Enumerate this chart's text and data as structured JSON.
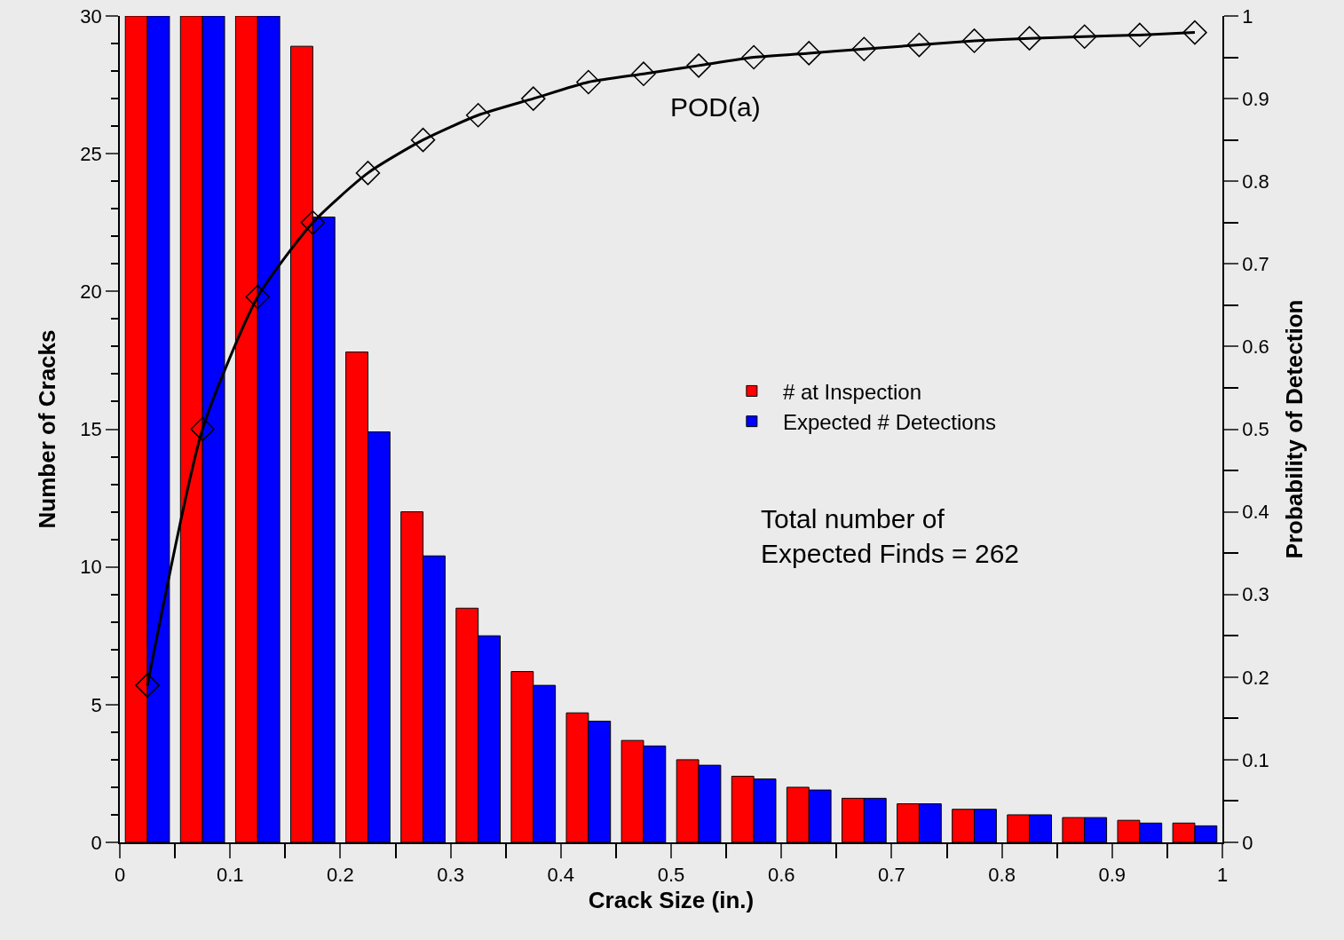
{
  "chart_data": {
    "type": "bar",
    "xlabel": "Crack Size (in.)",
    "ylabel": "Number of Cracks",
    "y2label": "Probability of Detection",
    "x": [
      0.025,
      0.075,
      0.125,
      0.175,
      0.225,
      0.275,
      0.325,
      0.375,
      0.425,
      0.475,
      0.525,
      0.575,
      0.625,
      0.675,
      0.725,
      0.775,
      0.825,
      0.875,
      0.925,
      0.975
    ],
    "xlim": [
      0,
      1
    ],
    "xticks": [
      0,
      0.1,
      0.2,
      0.3,
      0.4,
      0.5,
      0.6,
      0.7,
      0.8,
      0.9,
      1
    ],
    "ylim": [
      0,
      30
    ],
    "yticks": [
      0,
      5,
      10,
      15,
      20,
      25,
      30
    ],
    "y2lim": [
      0,
      1
    ],
    "y2ticks": [
      0,
      0.1,
      0.2,
      0.3,
      0.4,
      0.5,
      0.6,
      0.7,
      0.8,
      0.9,
      1
    ],
    "legend": "right",
    "series": [
      {
        "name": "# at Inspection",
        "color": "#ff0000",
        "values": [
          30,
          30,
          30,
          28.9,
          17.8,
          12.0,
          8.5,
          6.2,
          4.7,
          3.7,
          3.0,
          2.4,
          2.0,
          1.6,
          1.4,
          1.2,
          1.0,
          0.9,
          0.8,
          0.7
        ]
      },
      {
        "name": "Expected # Detections",
        "color": "#0000ff",
        "values": [
          30,
          30,
          30,
          22.7,
          14.9,
          10.4,
          7.5,
          5.7,
          4.4,
          3.5,
          2.8,
          2.3,
          1.9,
          1.6,
          1.4,
          1.2,
          1.0,
          0.9,
          0.7,
          0.6
        ]
      },
      {
        "name": "POD(a)",
        "type": "line",
        "axis": "y2",
        "color": "#000000",
        "marker": "diamond",
        "values": [
          0.19,
          0.5,
          0.66,
          0.75,
          0.81,
          0.85,
          0.88,
          0.9,
          0.92,
          0.93,
          0.94,
          0.95,
          0.955,
          0.96,
          0.965,
          0.97,
          0.973,
          0.975,
          0.977,
          0.98
        ]
      }
    ],
    "annotations": [
      "Total number of\nExpected Finds = 262"
    ]
  }
}
